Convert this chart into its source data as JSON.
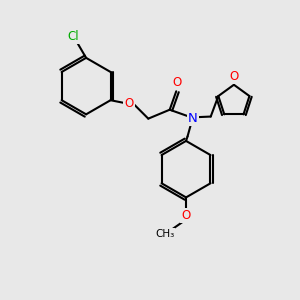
{
  "bg_color": "#e8e8e8",
  "bond_color": "#000000",
  "bond_width": 1.5,
  "atom_colors": {
    "Cl": "#00aa00",
    "O": "#ff0000",
    "N": "#0000ff",
    "C": "#000000"
  },
  "fig_size": [
    3.0,
    3.0
  ],
  "dpi": 100,
  "xlim": [
    0,
    10
  ],
  "ylim": [
    0,
    10
  ]
}
